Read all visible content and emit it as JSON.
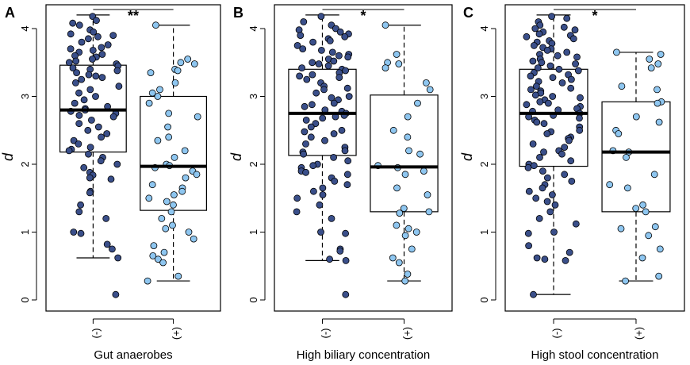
{
  "chart_data": [
    {
      "type": "box",
      "panel": "A",
      "xlabel": "Gut anaerobes",
      "ylabel": "d",
      "ylim": [
        0,
        4.2
      ],
      "yticks": [
        0,
        1,
        2,
        3,
        4
      ],
      "categories": [
        "(-)",
        "(+)"
      ],
      "significance": "**",
      "boxes": [
        {
          "category": "(-)",
          "whisker_low": 0.62,
          "q1": 2.18,
          "median": 2.8,
          "q3": 3.46,
          "whisker_high": 4.2,
          "points": [
            4.18,
            4.12,
            4.08,
            4.05,
            3.98,
            3.95,
            3.92,
            3.9,
            3.88,
            3.85,
            3.8,
            3.76,
            3.72,
            3.7,
            3.68,
            3.65,
            3.62,
            3.6,
            3.58,
            3.55,
            3.52,
            3.5,
            3.48,
            3.45,
            3.42,
            3.4,
            3.38,
            3.35,
            3.32,
            3.3,
            3.28,
            3.25,
            3.2,
            3.15,
            3.1,
            3.05,
            3.0,
            2.95,
            2.9,
            2.85,
            2.82,
            2.8,
            2.78,
            2.75,
            2.72,
            2.7,
            2.65,
            2.6,
            2.55,
            2.5,
            2.45,
            2.4,
            2.35,
            2.3,
            2.25,
            2.22,
            2.2,
            2.15,
            2.1,
            2.05,
            2.0,
            1.95,
            1.88,
            1.84,
            1.8,
            1.78,
            1.6,
            1.58,
            1.4,
            1.3,
            1.2,
            1.0,
            0.98,
            0.82,
            0.75,
            0.62,
            0.08
          ]
        },
        {
          "category": "(+)",
          "whisker_low": 0.28,
          "q1": 1.32,
          "median": 1.97,
          "q3": 3.0,
          "whisker_high": 4.05,
          "points": [
            4.05,
            3.55,
            3.5,
            3.48,
            3.4,
            3.38,
            3.35,
            3.2,
            3.1,
            3.05,
            3.0,
            2.9,
            2.75,
            2.7,
            2.55,
            2.4,
            2.35,
            2.2,
            2.1,
            2.0,
            1.98,
            1.95,
            1.9,
            1.85,
            1.8,
            1.7,
            1.65,
            1.6,
            1.55,
            1.5,
            1.45,
            1.4,
            1.3,
            1.2,
            1.1,
            1.05,
            1.0,
            0.9,
            0.8,
            0.7,
            0.65,
            0.6,
            0.55,
            0.35,
            0.28
          ]
        }
      ]
    },
    {
      "type": "box",
      "panel": "B",
      "xlabel": "High biliary concentration",
      "ylabel": "d",
      "ylim": [
        0,
        4.2
      ],
      "yticks": [
        0,
        1,
        2,
        3,
        4
      ],
      "categories": [
        "(-)",
        "(+)"
      ],
      "significance": "*",
      "boxes": [
        {
          "category": "(-)",
          "whisker_low": 0.58,
          "q1": 2.13,
          "median": 2.75,
          "q3": 3.4,
          "whisker_high": 4.2,
          "points": [
            4.18,
            4.1,
            4.05,
            4.0,
            3.98,
            3.95,
            3.92,
            3.9,
            3.88,
            3.85,
            3.82,
            3.8,
            3.75,
            3.7,
            3.68,
            3.65,
            3.62,
            3.6,
            3.58,
            3.55,
            3.52,
            3.5,
            3.48,
            3.45,
            3.42,
            3.4,
            3.38,
            3.35,
            3.32,
            3.3,
            3.28,
            3.25,
            3.2,
            3.15,
            3.12,
            3.1,
            3.05,
            3.0,
            2.98,
            2.95,
            2.9,
            2.88,
            2.85,
            2.8,
            2.78,
            2.75,
            2.72,
            2.7,
            2.68,
            2.65,
            2.6,
            2.55,
            2.5,
            2.48,
            2.45,
            2.4,
            2.35,
            2.3,
            2.25,
            2.2,
            2.18,
            2.15,
            2.1,
            2.05,
            2.0,
            1.98,
            1.95,
            1.9,
            1.88,
            1.85,
            1.8,
            1.75,
            1.7,
            1.65,
            1.6,
            1.55,
            1.5,
            1.4,
            1.3,
            1.2,
            1.0,
            0.98,
            0.75,
            0.72,
            0.6,
            0.58,
            0.08
          ]
        },
        {
          "category": "(+)",
          "whisker_low": 0.28,
          "q1": 1.3,
          "median": 1.96,
          "q3": 3.02,
          "whisker_high": 4.05,
          "points": [
            4.05,
            3.62,
            3.5,
            3.48,
            3.42,
            3.2,
            3.1,
            2.9,
            2.7,
            2.5,
            2.4,
            2.2,
            2.15,
            1.98,
            1.95,
            1.9,
            1.85,
            1.65,
            1.55,
            1.35,
            1.3,
            1.28,
            1.1,
            1.05,
            1.0,
            0.95,
            0.75,
            0.62,
            0.55,
            0.38,
            0.28
          ]
        }
      ]
    },
    {
      "type": "box",
      "panel": "C",
      "xlabel": "High stool concentration",
      "ylabel": "d",
      "ylim": [
        0,
        4.2
      ],
      "yticks": [
        0,
        1,
        2,
        3,
        4
      ],
      "categories": [
        "(-)",
        "(+)"
      ],
      "significance": "*",
      "boxes": [
        {
          "category": "(-)",
          "whisker_low": 0.08,
          "q1": 1.97,
          "median": 2.75,
          "q3": 3.4,
          "whisker_high": 4.2,
          "points": [
            4.18,
            4.15,
            4.1,
            4.05,
            4.02,
            4.0,
            3.98,
            3.95,
            3.92,
            3.9,
            3.88,
            3.85,
            3.82,
            3.8,
            3.78,
            3.75,
            3.72,
            3.7,
            3.68,
            3.65,
            3.62,
            3.6,
            3.58,
            3.55,
            3.52,
            3.5,
            3.48,
            3.45,
            3.42,
            3.4,
            3.38,
            3.35,
            3.32,
            3.3,
            3.28,
            3.25,
            3.22,
            3.2,
            3.15,
            3.12,
            3.1,
            3.08,
            3.05,
            3.02,
            3.0,
            2.98,
            2.95,
            2.92,
            2.9,
            2.88,
            2.85,
            2.82,
            2.8,
            2.78,
            2.75,
            2.72,
            2.7,
            2.68,
            2.65,
            2.62,
            2.6,
            2.55,
            2.5,
            2.48,
            2.45,
            2.4,
            2.38,
            2.35,
            2.3,
            2.25,
            2.2,
            2.18,
            2.15,
            2.1,
            2.05,
            2.0,
            1.98,
            1.95,
            1.9,
            1.85,
            1.8,
            1.75,
            1.7,
            1.65,
            1.6,
            1.55,
            1.5,
            1.45,
            1.4,
            1.3,
            1.2,
            1.12,
            1.0,
            0.98,
            0.8,
            0.7,
            0.62,
            0.6,
            0.58,
            0.08
          ]
        },
        {
          "category": "(+)",
          "whisker_low": 0.28,
          "q1": 1.3,
          "median": 2.18,
          "q3": 2.92,
          "whisker_high": 3.65,
          "points": [
            3.65,
            3.62,
            3.55,
            3.48,
            3.42,
            3.15,
            3.1,
            2.92,
            2.9,
            2.7,
            2.62,
            2.5,
            2.45,
            2.2,
            2.18,
            2.1,
            1.85,
            1.7,
            1.65,
            1.4,
            1.35,
            1.3,
            1.08,
            1.05,
            0.95,
            0.75,
            0.62,
            0.35,
            0.28
          ]
        }
      ]
    }
  ],
  "colors": {
    "negative_fill": "#3a4f8a",
    "positive_fill": "#8ec6f0",
    "point_stroke": "#000000",
    "axis": "#000000",
    "box_fill": "#ffffff"
  }
}
